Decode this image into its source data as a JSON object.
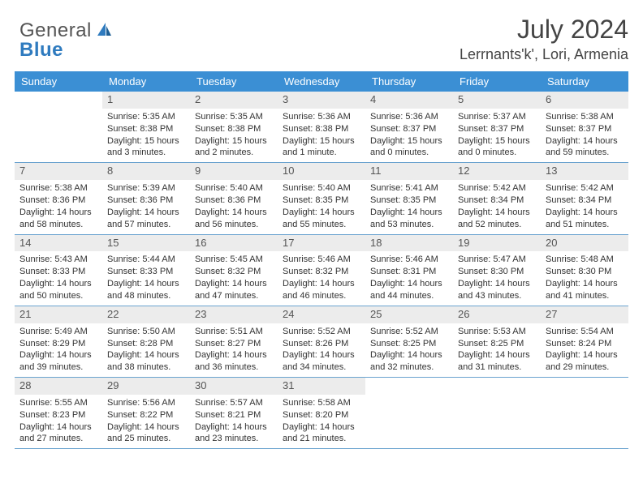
{
  "logo": {
    "text1": "General",
    "text2": "Blue"
  },
  "title": "July 2024",
  "location": "Lerrnants'k', Lori, Armenia",
  "weekday_header_bg": "#3b8fd4",
  "weekday_header_fg": "#ffffff",
  "daynum_bg": "#ececec",
  "row_border": "#6aa3cf",
  "weekdays": [
    "Sunday",
    "Monday",
    "Tuesday",
    "Wednesday",
    "Thursday",
    "Friday",
    "Saturday"
  ],
  "weeks": [
    [
      {
        "n": "",
        "lines": []
      },
      {
        "n": "1",
        "lines": [
          "Sunrise: 5:35 AM",
          "Sunset: 8:38 PM",
          "Daylight: 15 hours",
          "and 3 minutes."
        ]
      },
      {
        "n": "2",
        "lines": [
          "Sunrise: 5:35 AM",
          "Sunset: 8:38 PM",
          "Daylight: 15 hours",
          "and 2 minutes."
        ]
      },
      {
        "n": "3",
        "lines": [
          "Sunrise: 5:36 AM",
          "Sunset: 8:38 PM",
          "Daylight: 15 hours",
          "and 1 minute."
        ]
      },
      {
        "n": "4",
        "lines": [
          "Sunrise: 5:36 AM",
          "Sunset: 8:37 PM",
          "Daylight: 15 hours",
          "and 0 minutes."
        ]
      },
      {
        "n": "5",
        "lines": [
          "Sunrise: 5:37 AM",
          "Sunset: 8:37 PM",
          "Daylight: 15 hours",
          "and 0 minutes."
        ]
      },
      {
        "n": "6",
        "lines": [
          "Sunrise: 5:38 AM",
          "Sunset: 8:37 PM",
          "Daylight: 14 hours",
          "and 59 minutes."
        ]
      }
    ],
    [
      {
        "n": "7",
        "lines": [
          "Sunrise: 5:38 AM",
          "Sunset: 8:36 PM",
          "Daylight: 14 hours",
          "and 58 minutes."
        ]
      },
      {
        "n": "8",
        "lines": [
          "Sunrise: 5:39 AM",
          "Sunset: 8:36 PM",
          "Daylight: 14 hours",
          "and 57 minutes."
        ]
      },
      {
        "n": "9",
        "lines": [
          "Sunrise: 5:40 AM",
          "Sunset: 8:36 PM",
          "Daylight: 14 hours",
          "and 56 minutes."
        ]
      },
      {
        "n": "10",
        "lines": [
          "Sunrise: 5:40 AM",
          "Sunset: 8:35 PM",
          "Daylight: 14 hours",
          "and 55 minutes."
        ]
      },
      {
        "n": "11",
        "lines": [
          "Sunrise: 5:41 AM",
          "Sunset: 8:35 PM",
          "Daylight: 14 hours",
          "and 53 minutes."
        ]
      },
      {
        "n": "12",
        "lines": [
          "Sunrise: 5:42 AM",
          "Sunset: 8:34 PM",
          "Daylight: 14 hours",
          "and 52 minutes."
        ]
      },
      {
        "n": "13",
        "lines": [
          "Sunrise: 5:42 AM",
          "Sunset: 8:34 PM",
          "Daylight: 14 hours",
          "and 51 minutes."
        ]
      }
    ],
    [
      {
        "n": "14",
        "lines": [
          "Sunrise: 5:43 AM",
          "Sunset: 8:33 PM",
          "Daylight: 14 hours",
          "and 50 minutes."
        ]
      },
      {
        "n": "15",
        "lines": [
          "Sunrise: 5:44 AM",
          "Sunset: 8:33 PM",
          "Daylight: 14 hours",
          "and 48 minutes."
        ]
      },
      {
        "n": "16",
        "lines": [
          "Sunrise: 5:45 AM",
          "Sunset: 8:32 PM",
          "Daylight: 14 hours",
          "and 47 minutes."
        ]
      },
      {
        "n": "17",
        "lines": [
          "Sunrise: 5:46 AM",
          "Sunset: 8:32 PM",
          "Daylight: 14 hours",
          "and 46 minutes."
        ]
      },
      {
        "n": "18",
        "lines": [
          "Sunrise: 5:46 AM",
          "Sunset: 8:31 PM",
          "Daylight: 14 hours",
          "and 44 minutes."
        ]
      },
      {
        "n": "19",
        "lines": [
          "Sunrise: 5:47 AM",
          "Sunset: 8:30 PM",
          "Daylight: 14 hours",
          "and 43 minutes."
        ]
      },
      {
        "n": "20",
        "lines": [
          "Sunrise: 5:48 AM",
          "Sunset: 8:30 PM",
          "Daylight: 14 hours",
          "and 41 minutes."
        ]
      }
    ],
    [
      {
        "n": "21",
        "lines": [
          "Sunrise: 5:49 AM",
          "Sunset: 8:29 PM",
          "Daylight: 14 hours",
          "and 39 minutes."
        ]
      },
      {
        "n": "22",
        "lines": [
          "Sunrise: 5:50 AM",
          "Sunset: 8:28 PM",
          "Daylight: 14 hours",
          "and 38 minutes."
        ]
      },
      {
        "n": "23",
        "lines": [
          "Sunrise: 5:51 AM",
          "Sunset: 8:27 PM",
          "Daylight: 14 hours",
          "and 36 minutes."
        ]
      },
      {
        "n": "24",
        "lines": [
          "Sunrise: 5:52 AM",
          "Sunset: 8:26 PM",
          "Daylight: 14 hours",
          "and 34 minutes."
        ]
      },
      {
        "n": "25",
        "lines": [
          "Sunrise: 5:52 AM",
          "Sunset: 8:25 PM",
          "Daylight: 14 hours",
          "and 32 minutes."
        ]
      },
      {
        "n": "26",
        "lines": [
          "Sunrise: 5:53 AM",
          "Sunset: 8:25 PM",
          "Daylight: 14 hours",
          "and 31 minutes."
        ]
      },
      {
        "n": "27",
        "lines": [
          "Sunrise: 5:54 AM",
          "Sunset: 8:24 PM",
          "Daylight: 14 hours",
          "and 29 minutes."
        ]
      }
    ],
    [
      {
        "n": "28",
        "lines": [
          "Sunrise: 5:55 AM",
          "Sunset: 8:23 PM",
          "Daylight: 14 hours",
          "and 27 minutes."
        ]
      },
      {
        "n": "29",
        "lines": [
          "Sunrise: 5:56 AM",
          "Sunset: 8:22 PM",
          "Daylight: 14 hours",
          "and 25 minutes."
        ]
      },
      {
        "n": "30",
        "lines": [
          "Sunrise: 5:57 AM",
          "Sunset: 8:21 PM",
          "Daylight: 14 hours",
          "and 23 minutes."
        ]
      },
      {
        "n": "31",
        "lines": [
          "Sunrise: 5:58 AM",
          "Sunset: 8:20 PM",
          "Daylight: 14 hours",
          "and 21 minutes."
        ]
      },
      {
        "n": "",
        "lines": []
      },
      {
        "n": "",
        "lines": []
      },
      {
        "n": "",
        "lines": []
      }
    ]
  ]
}
